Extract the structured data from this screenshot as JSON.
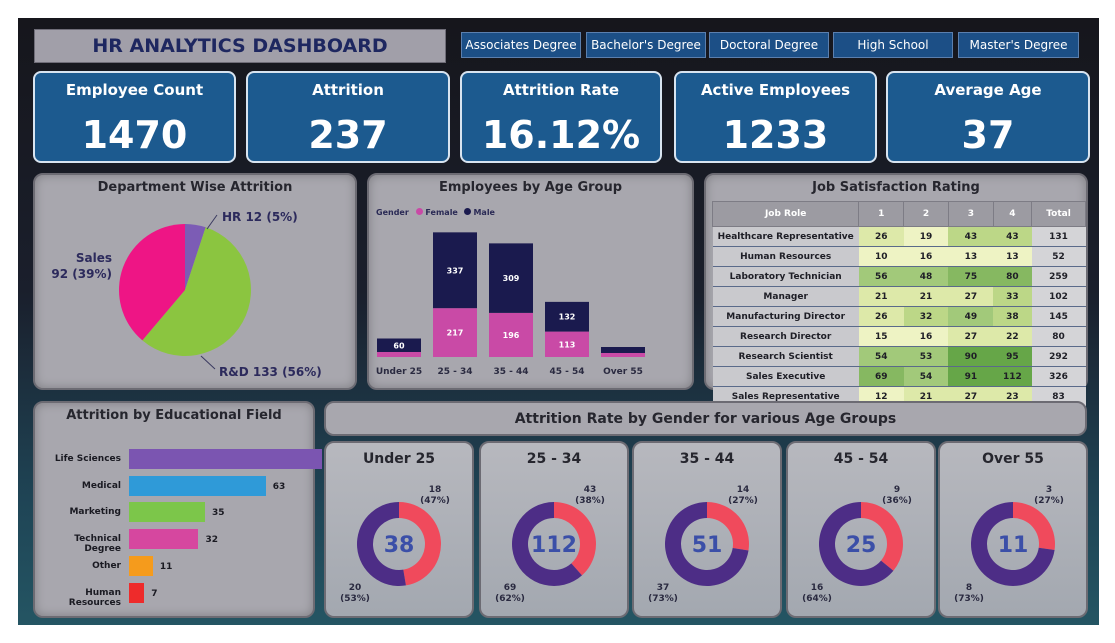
{
  "title": "HR ANALYTICS DASHBOARD",
  "slicers": [
    "Associates Degree",
    "Bachelor's Degree",
    "Doctoral Degree",
    "High School",
    "Master's Degree"
  ],
  "kpis": [
    {
      "label": "Employee Count",
      "value": "1470"
    },
    {
      "label": "Attrition",
      "value": "237"
    },
    {
      "label": "Attrition Rate",
      "value": "16.12%"
    },
    {
      "label": "Active Employees",
      "value": "1233"
    },
    {
      "label": "Average Age",
      "value": "37"
    }
  ],
  "colors": {
    "female": "#c94aa6",
    "male": "#1a1a4e",
    "pie_hr": "#7c5cb5",
    "pie_sales": "#ee1585",
    "pie_rd": "#8bc540",
    "donut_female": "#f04a5c",
    "donut_male": "#4d2d86"
  },
  "chart_data": [
    {
      "type": "pie",
      "title": "Department Wise Attrition",
      "slices": [
        {
          "name": "HR",
          "value": 12,
          "label": "HR 12 (5%)"
        },
        {
          "name": "R&D",
          "value": 133,
          "label": "R&D 133 (56%)"
        },
        {
          "name": "Sales",
          "value": 92,
          "label_line1": "Sales",
          "label_line2": "92 (39%)"
        }
      ]
    },
    {
      "type": "bar",
      "title": "Employees by Age Group",
      "legend_title": "Gender",
      "categories": [
        "Under 25",
        "25 - 34",
        "35 - 44",
        "45 - 54",
        "Over 55"
      ],
      "series": [
        {
          "name": "Female",
          "values": [
            null,
            217,
            196,
            113,
            null
          ]
        },
        {
          "name": "Male",
          "values": [
            60,
            337,
            309,
            132,
            null
          ]
        }
      ],
      "data_labels": {
        "Female": [
          "",
          "217",
          "196",
          "113",
          ""
        ],
        "Male": [
          "60",
          "337",
          "309",
          "132",
          ""
        ]
      }
    },
    {
      "type": "table",
      "title": "Job Satisfaction Rating",
      "columns": [
        "Job Role",
        "1",
        "2",
        "3",
        "4",
        "Total"
      ],
      "rows": [
        [
          "Healthcare Representative",
          "26",
          "19",
          "43",
          "43",
          "131"
        ],
        [
          "Human Resources",
          "10",
          "16",
          "13",
          "13",
          "52"
        ],
        [
          "Laboratory Technician",
          "56",
          "48",
          "75",
          "80",
          "259"
        ],
        [
          "Manager",
          "21",
          "21",
          "27",
          "33",
          "102"
        ],
        [
          "Manufacturing Director",
          "26",
          "32",
          "49",
          "38",
          "145"
        ],
        [
          "Research Director",
          "15",
          "16",
          "27",
          "22",
          "80"
        ],
        [
          "Research Scientist",
          "54",
          "53",
          "90",
          "95",
          "292"
        ],
        [
          "Sales Executive",
          "69",
          "54",
          "91",
          "112",
          "326"
        ],
        [
          "Sales Representative",
          "12",
          "21",
          "27",
          "23",
          "83"
        ]
      ]
    },
    {
      "type": "bar",
      "orientation": "horizontal",
      "title": "Attrition by Educational Field",
      "categories": [
        "Life Sciences",
        "Medical",
        "Marketing",
        "Technical Degree",
        "Other",
        "Human Resources"
      ],
      "values": [
        89,
        63,
        35,
        32,
        11,
        7
      ],
      "bar_colors": [
        "#7b55b1",
        "#2f9ad8",
        "#7cc64a",
        "#d6479f",
        "#f59b1c",
        "#ee2b2b"
      ]
    },
    {
      "type": "pie",
      "title": "Attrition Rate by Gender for various Age Groups",
      "donuts": [
        {
          "group": "Under 25",
          "total": "38",
          "male": 20,
          "male_pct": "(53%)",
          "female": 18,
          "female_pct": "(47%)"
        },
        {
          "group": "25 - 34",
          "total": "112",
          "male": 69,
          "male_pct": "(62%)",
          "female": 43,
          "female_pct": "(38%)"
        },
        {
          "group": "35 - 44",
          "total": "51",
          "male": 37,
          "male_pct": "(73%)",
          "female": 14,
          "female_pct": "(27%)"
        },
        {
          "group": "45 - 54",
          "total": "25",
          "male": 16,
          "male_pct": "(64%)",
          "female": 9,
          "female_pct": "(36%)"
        },
        {
          "group": "Over 55",
          "total": "11",
          "male": 8,
          "male_pct": "(73%)",
          "female": 3,
          "female_pct": "(27%)"
        }
      ]
    }
  ]
}
